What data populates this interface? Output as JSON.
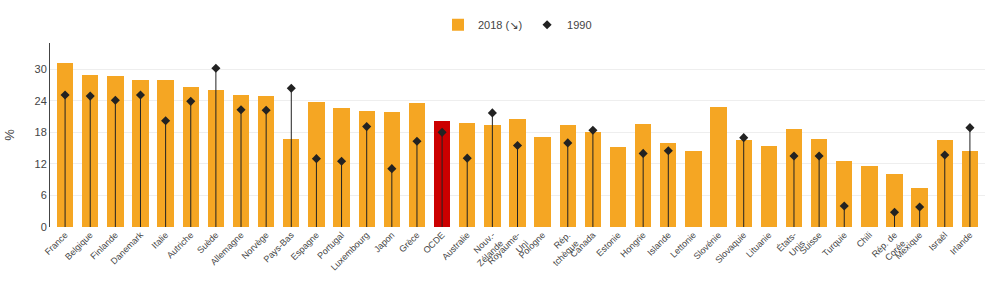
{
  "chart_data": {
    "type": "bar",
    "categories": [
      "France",
      "Belgique",
      "Finlande",
      "Danemark",
      "Italie",
      "Autriche",
      "Suède",
      "Allemagne",
      "Norvège",
      "Pays-Bas",
      "Espagne",
      "Portugal",
      "Luxembourg",
      "Japon",
      "Grèce",
      "OCDE",
      "Australie",
      "Nouv.-\nZélande",
      "Royaume-\nUni",
      "Pologne",
      "Rép.\ntchèque",
      "Canada",
      "Estonie",
      "Hongrie",
      "Islande",
      "Lettonie",
      "Slovénie",
      "Slovaquie",
      "Lituanie",
      "États-\nUnis",
      "Suisse",
      "Turquie",
      "Chili",
      "Rép. de\nCorée",
      "Mexique",
      "Israël",
      "Irlande"
    ],
    "series": [
      {
        "name": "2018 (↘)",
        "type": "bar",
        "color": "#F5A623",
        "colors": [
          "#F5A623",
          "#F5A623",
          "#F5A623",
          "#F5A623",
          "#F5A623",
          "#F5A623",
          "#F5A623",
          "#F5A623",
          "#F5A623",
          "#F5A623",
          "#F5A623",
          "#F5A623",
          "#F5A623",
          "#F5A623",
          "#F5A623",
          "#CC0000",
          "#F5A623",
          "#F5A623",
          "#F5A623",
          "#F5A623",
          "#F5A623",
          "#F5A623",
          "#F5A623",
          "#F5A623",
          "#F5A623",
          "#F5A623",
          "#F5A623",
          "#F5A623",
          "#F5A623",
          "#F5A623",
          "#F5A623",
          "#F5A623",
          "#F5A623",
          "#F5A623",
          "#F5A623",
          "#F5A623",
          "#F5A623"
        ],
        "values": [
          31.2,
          28.9,
          28.7,
          28.0,
          27.9,
          26.6,
          26.1,
          25.1,
          25.0,
          16.7,
          23.7,
          22.6,
          22.0,
          21.9,
          23.5,
          20.1,
          19.8,
          19.4,
          20.6,
          17.1,
          19.4,
          18.0,
          15.2,
          19.6,
          16.0,
          14.5,
          22.8,
          16.5,
          15.5,
          18.7,
          16.7,
          12.5,
          11.6,
          10.1,
          7.5,
          16.6,
          14.4
        ]
      },
      {
        "name": "1990",
        "type": "scatter",
        "marker": "diamond",
        "color": "#222222",
        "values": [
          25.1,
          24.9,
          24.1,
          25.1,
          20.2,
          23.9,
          30.2,
          22.3,
          22.2,
          26.4,
          13.0,
          12.5,
          19.1,
          11.1,
          16.3,
          18.0,
          13.1,
          21.7,
          15.5,
          null,
          16.0,
          18.4,
          null,
          14.0,
          14.5,
          null,
          null,
          17.0,
          null,
          13.5,
          13.5,
          4.0,
          null,
          2.8,
          3.8,
          13.7,
          18.9
        ]
      }
    ],
    "ylabel": "%",
    "ylim": [
      0,
      35
    ],
    "yticks": [
      0,
      6,
      12,
      18,
      24,
      30
    ],
    "grid": true,
    "legend": "top"
  }
}
